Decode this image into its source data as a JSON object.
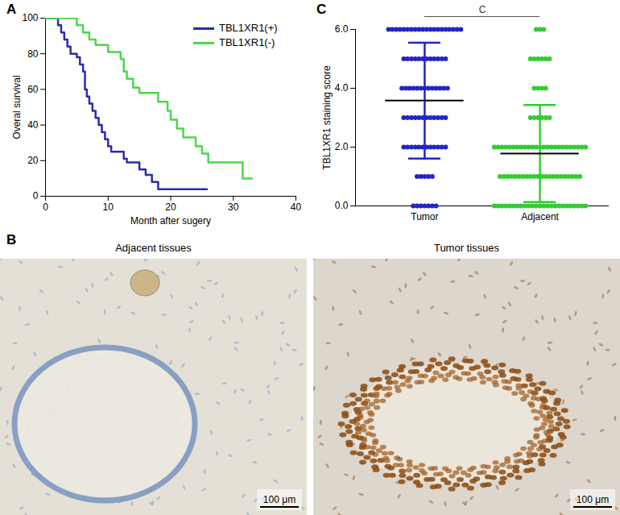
{
  "panel_labels": [
    "A",
    "B",
    "C"
  ],
  "chart_data": [
    {
      "type": "line",
      "line_style": "step",
      "x_label": "Month after sugery",
      "y_label": "Overal survival",
      "xlim": [
        0,
        40
      ],
      "xticks": [
        0,
        10,
        20,
        30,
        40
      ],
      "ylim": [
        0,
        100
      ],
      "yticks": [
        0,
        20,
        40,
        60,
        80,
        100
      ],
      "legend": "top-right",
      "series": [
        {
          "name": "TBL1XR1(+)",
          "color": "#2b2bb0",
          "x": [
            0,
            2,
            2.5,
            3,
            3.5,
            4,
            5,
            5.5,
            6,
            6.3,
            6.6,
            7,
            7.5,
            8,
            8.5,
            9,
            9.5,
            10,
            10.5,
            12.5,
            13,
            15,
            16,
            17,
            18,
            25.8
          ],
          "values": [
            100,
            96,
            92,
            88,
            84,
            80,
            78,
            74,
            70,
            60,
            56,
            52,
            48,
            44,
            40,
            36,
            32,
            28,
            25,
            21,
            19,
            15,
            12,
            8,
            4,
            4
          ]
        },
        {
          "name": "TBL1XR1(-)",
          "color": "#4cd64c",
          "x": [
            0,
            5,
            6,
            7,
            8,
            10,
            12,
            12.5,
            13,
            14,
            15,
            18,
            19.5,
            20,
            21,
            22,
            24,
            25,
            26,
            31.5,
            33
          ],
          "values": [
            100,
            96,
            92,
            88,
            85,
            81,
            77,
            70,
            66,
            61,
            58,
            53,
            48,
            43,
            38,
            33,
            28,
            24,
            19,
            10,
            10
          ]
        }
      ]
    },
    {
      "type": "scatter",
      "y_label": "TBL1XR1 staining score",
      "ylim": [
        0,
        6
      ],
      "yticks": [
        0,
        2,
        4,
        6
      ],
      "significance": {
        "label": "C",
        "between": [
          "Tumor",
          "Adjacent"
        ]
      },
      "series": [
        {
          "name": "Tumor",
          "color": "#2424c8",
          "mean": 3.58,
          "sd": 1.97,
          "values": [
            6,
            6,
            6,
            6,
            6,
            6,
            6,
            6,
            6,
            6,
            6,
            6,
            6,
            6,
            6,
            6,
            6,
            6,
            6,
            6,
            5,
            5,
            5,
            5,
            5,
            5,
            5,
            5,
            5,
            5,
            5,
            5,
            4,
            4,
            4,
            4,
            4,
            4,
            4,
            4,
            4,
            4,
            4,
            4,
            4,
            3,
            3,
            3,
            3,
            3,
            3,
            3,
            3,
            3,
            3,
            3,
            3,
            2,
            2,
            2,
            2,
            2,
            2,
            2,
            2,
            2,
            2,
            2,
            2,
            1,
            1,
            1,
            1,
            1,
            0,
            0,
            0,
            0,
            0,
            0,
            0
          ]
        },
        {
          "name": "Adjacent",
          "color": "#33cc33",
          "mean": 1.78,
          "sd": 1.65,
          "values": [
            6,
            6,
            6,
            5,
            5,
            5,
            5,
            5,
            5,
            4,
            4,
            4,
            4,
            3,
            3,
            3,
            3,
            3,
            3,
            2,
            2,
            2,
            2,
            2,
            2,
            2,
            2,
            2,
            2,
            2,
            2,
            2,
            2,
            2,
            2,
            2,
            2,
            2,
            2,
            2,
            2,
            2,
            2,
            2,
            1,
            1,
            1,
            1,
            1,
            1,
            1,
            1,
            1,
            1,
            1,
            1,
            1,
            1,
            1,
            1,
            1,
            1,
            1,
            1,
            1,
            1,
            0,
            0,
            0,
            0,
            0,
            0,
            0,
            0,
            0,
            0,
            0,
            0,
            0,
            0,
            0,
            0,
            0,
            0,
            0,
            0,
            0,
            0,
            0,
            0,
            0
          ]
        }
      ]
    }
  ],
  "images": [
    {
      "title": "Adjacent tissues",
      "scale_bar": "100 μm"
    },
    {
      "title": "Tumor tissues",
      "scale_bar": "100 μm"
    }
  ]
}
